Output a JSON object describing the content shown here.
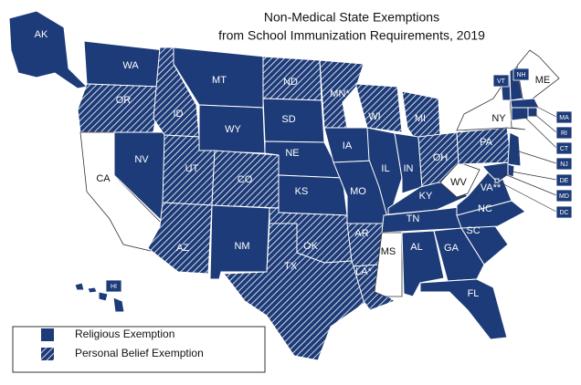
{
  "title": [
    "Non-Medical State Exemptions",
    "from School Immunization Requirements, 2019"
  ],
  "fill_color": "#1d3b78",
  "legend": [
    {
      "label": "Religious Exemption",
      "style": "solid"
    },
    {
      "label": "Personal Belief Exemption",
      "style": "hatched"
    }
  ],
  "states": [
    {
      "label": "AK",
      "style": "solid"
    },
    {
      "label": "WA",
      "style": "solid"
    },
    {
      "label": "OR",
      "style": "hatched"
    },
    {
      "label": "CA",
      "style": "none"
    },
    {
      "label": "NV",
      "style": "solid"
    },
    {
      "label": "ID",
      "style": "hatched"
    },
    {
      "label": "MT",
      "style": "solid"
    },
    {
      "label": "WY",
      "style": "solid"
    },
    {
      "label": "UT",
      "style": "hatched"
    },
    {
      "label": "CO",
      "style": "hatched"
    },
    {
      "label": "AZ",
      "style": "hatched"
    },
    {
      "label": "NM",
      "style": "solid"
    },
    {
      "label": "ND",
      "style": "hatched"
    },
    {
      "label": "SD",
      "style": "solid"
    },
    {
      "label": "NE",
      "style": "solid"
    },
    {
      "label": "KS",
      "style": "solid"
    },
    {
      "label": "OK",
      "style": "hatched"
    },
    {
      "label": "TX",
      "style": "hatched"
    },
    {
      "label": "MN*",
      "style": "hatched"
    },
    {
      "label": "IA",
      "style": "solid"
    },
    {
      "label": "MO",
      "style": "solid"
    },
    {
      "label": "AR",
      "style": "hatched"
    },
    {
      "label": "LA*",
      "style": "hatched"
    },
    {
      "label": "WI",
      "style": "hatched"
    },
    {
      "label": "IL",
      "style": "solid"
    },
    {
      "label": "MI",
      "style": "hatched"
    },
    {
      "label": "IN",
      "style": "solid"
    },
    {
      "label": "OH",
      "style": "hatched"
    },
    {
      "label": "KY",
      "style": "solid"
    },
    {
      "label": "TN",
      "style": "solid"
    },
    {
      "label": "MS",
      "style": "none"
    },
    {
      "label": "AL",
      "style": "solid"
    },
    {
      "label": "GA",
      "style": "solid"
    },
    {
      "label": "FL",
      "style": "solid"
    },
    {
      "label": "SC",
      "style": "solid"
    },
    {
      "label": "NC",
      "style": "solid"
    },
    {
      "label": "VA**",
      "style": "solid"
    },
    {
      "label": "WV",
      "style": "none"
    },
    {
      "label": "PA",
      "style": "hatched"
    },
    {
      "label": "NY",
      "style": "none"
    },
    {
      "label": "VT",
      "style": "solid"
    },
    {
      "label": "NH",
      "style": "solid"
    },
    {
      "label": "ME",
      "style": "none"
    },
    {
      "label": "MA",
      "style": "solid"
    },
    {
      "label": "RI",
      "style": "solid"
    },
    {
      "label": "CT",
      "style": "solid"
    },
    {
      "label": "NJ",
      "style": "solid"
    },
    {
      "label": "DE",
      "style": "solid"
    },
    {
      "label": "MD",
      "style": "solid"
    },
    {
      "label": "DC",
      "style": "solid"
    },
    {
      "label": "HI",
      "style": "solid"
    }
  ]
}
